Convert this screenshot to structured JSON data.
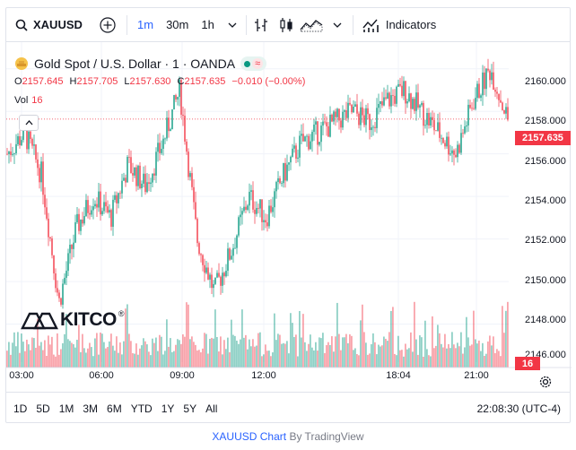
{
  "toolbar": {
    "symbol": "XAUUSD",
    "intervals": [
      {
        "label": "1m",
        "active": true
      },
      {
        "label": "30m",
        "active": false
      },
      {
        "label": "1h",
        "active": false
      }
    ],
    "indicators_label": "Indicators",
    "icons": [
      "search-icon",
      "add-compare-icon",
      "chevron-down-icon",
      "bar-style-icon",
      "candles-icon",
      "area-icon",
      "chevron-down-icon",
      "indicators-icon"
    ]
  },
  "legend": {
    "title": "Gold Spot / U.S. Dollar · 1 · OANDA",
    "open_key": "O",
    "open": "2157.645",
    "high_key": "H",
    "high": "2157.705",
    "low_key": "L",
    "low": "2157.630",
    "close_key": "C",
    "close": "2157.635",
    "change": "−0.010 (−0.00%)",
    "vol_label": "Vol",
    "vol_value": "16"
  },
  "logo_text": "KITCO",
  "price_axis": {
    "ticks": [
      "2160.000",
      "2158.000",
      "2156.000",
      "2154.000",
      "2152.000",
      "2150.000",
      "2148.000",
      "2146.000"
    ],
    "current_price": "2157.635",
    "current_volume": "16"
  },
  "time_axis": {
    "ticks": [
      "03:00",
      "06:00",
      "09:00",
      "12:00",
      "18:04",
      "21:00"
    ]
  },
  "ranges": [
    "1D",
    "5D",
    "1M",
    "3M",
    "6M",
    "YTD",
    "1Y",
    "5Y",
    "All"
  ],
  "clock": "22:08:30 (UTC-4)",
  "footer": {
    "link": "XAUUSD Chart",
    "by": "By TradingView"
  },
  "colors": {
    "up": "#089981",
    "down": "#f23645",
    "accent": "#2962ff"
  },
  "chart_data": {
    "type": "candlestick",
    "series": [
      {
        "name": "XAUUSD",
        "values": [
          2156.0,
          2157.0,
          2155.0,
          2149.0,
          2152.5,
          2154.0,
          2153.0,
          2155.5,
          2154.5,
          2156.5,
          2159.0,
          2152.0,
          2149.5,
          2151.5,
          2154.0,
          2153.0,
          2155.0,
          2156.5,
          2157.0,
          2157.5,
          2158.0,
          2157.5,
          2158.5,
          2159.0,
          2158.0,
          2157.0,
          2156.0,
          2158.5,
          2160.0,
          2157.6
        ]
      }
    ],
    "ylim": [
      2146,
      2161
    ],
    "volume_last": 16
  }
}
